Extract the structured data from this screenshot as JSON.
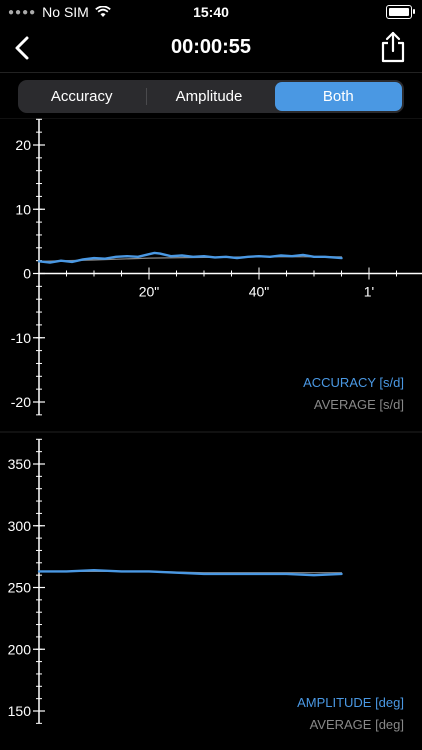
{
  "status": {
    "carrier": "No SIM",
    "time": "15:40"
  },
  "nav": {
    "title": "00:00:55"
  },
  "segments": [
    {
      "label": "Accuracy",
      "active": false
    },
    {
      "label": "Amplitude",
      "active": false
    },
    {
      "label": "Both",
      "active": true
    }
  ],
  "colors": {
    "accent": "#4a98e3",
    "average": "#888888",
    "background": "#000000"
  },
  "chart_data": [
    {
      "type": "line",
      "name": "accuracy",
      "yticks": [
        20,
        10,
        0,
        -10,
        -20
      ],
      "xticks": [
        "20\"",
        "40\"",
        "1'"
      ],
      "ylim": [
        -22,
        24
      ],
      "xlim": [
        0,
        70
      ],
      "series": [
        {
          "name": "ACCURACY [s/d]",
          "color": "#4a98e3",
          "x": [
            0,
            2,
            4,
            6,
            8,
            10,
            12,
            14,
            16,
            18,
            20,
            21,
            22,
            24,
            26,
            28,
            30,
            32,
            34,
            36,
            38,
            40,
            42,
            44,
            46,
            48,
            50,
            52,
            55
          ],
          "y": [
            1.9,
            1.7,
            2.0,
            1.8,
            2.2,
            2.4,
            2.3,
            2.6,
            2.7,
            2.6,
            3.0,
            3.2,
            3.1,
            2.7,
            2.8,
            2.6,
            2.7,
            2.5,
            2.6,
            2.4,
            2.6,
            2.7,
            2.6,
            2.8,
            2.7,
            2.9,
            2.6,
            2.6,
            2.4
          ]
        },
        {
          "name": "AVERAGE [s/d]",
          "color": "#888888",
          "x": [
            0,
            10,
            20,
            30,
            40,
            55
          ],
          "y": [
            1.9,
            2.1,
            2.4,
            2.5,
            2.6,
            2.6
          ]
        }
      ]
    },
    {
      "type": "line",
      "name": "amplitude",
      "yticks": [
        350,
        300,
        250,
        200,
        150
      ],
      "ylim": [
        140,
        370
      ],
      "xlim": [
        0,
        70
      ],
      "series": [
        {
          "name": "AMPLITUDE [deg]",
          "color": "#4a98e3",
          "x": [
            0,
            5,
            10,
            15,
            20,
            25,
            30,
            35,
            40,
            45,
            50,
            55
          ],
          "y": [
            263,
            263,
            264,
            263,
            263,
            262,
            261,
            261,
            261,
            261,
            260,
            261
          ]
        },
        {
          "name": "AVERAGE [deg]",
          "color": "#888888",
          "x": [
            0,
            10,
            20,
            30,
            40,
            55
          ],
          "y": [
            263,
            263,
            263,
            262,
            262,
            262
          ]
        }
      ]
    }
  ]
}
